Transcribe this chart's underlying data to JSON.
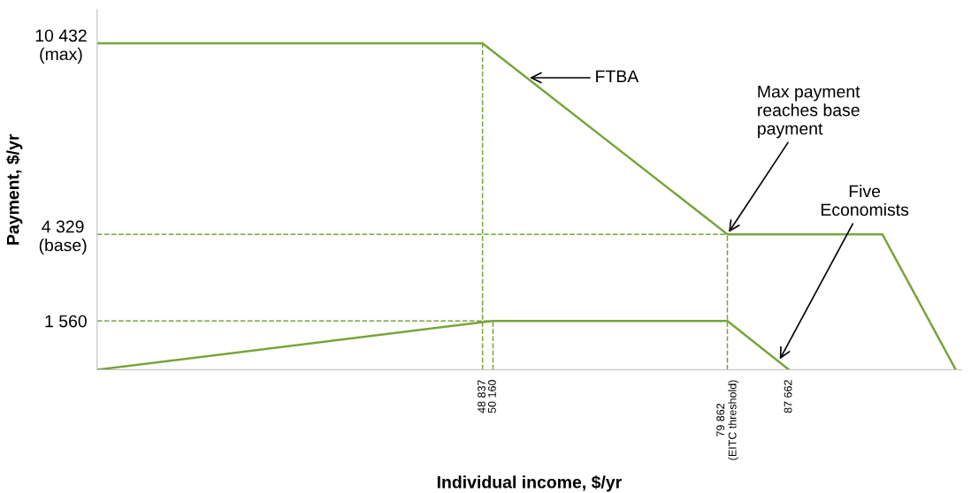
{
  "chart_data": {
    "type": "line",
    "xlabel": "Individual income, $/yr",
    "ylabel": "Payment, $/yr",
    "xlim": [
      0,
      109500
    ],
    "ylim": [
      0,
      11500
    ],
    "xticks": [
      {
        "value": 48837,
        "label": "48 837"
      },
      {
        "value": 50160,
        "label": "50 160"
      },
      {
        "value": 79862,
        "label": "79 862\n(EITC threshold)"
      },
      {
        "value": 87662,
        "label": "87 662"
      }
    ],
    "yticks": [
      {
        "value": 1560,
        "label": "1 560"
      },
      {
        "value": 4329,
        "label": "4 329\n(base)"
      },
      {
        "value": 10432,
        "label": "10 432\n(max)"
      }
    ],
    "line_style": "solid",
    "series": [
      {
        "color": "#77a53a",
        "x": [
          0,
          48837,
          79862,
          99500,
          108800
        ],
        "values": [
          10432,
          10432,
          4329,
          4329,
          0
        ]
      },
      {
        "color": "#77a53a",
        "x": [
          0,
          50160,
          79862,
          87662
        ],
        "values": [
          0,
          1560,
          1560,
          0
        ]
      }
    ],
    "ref_lines": [
      {
        "axis": "y",
        "value": 4329,
        "color": "#77a53a",
        "line_style": "dashed"
      },
      {
        "axis": "y",
        "value": 1560,
        "color": "#77a53a",
        "line_style": "dashed"
      },
      {
        "axis": "x",
        "value": 48837,
        "color": "#77a53a",
        "line_style": "dashed"
      },
      {
        "axis": "x",
        "value": 50160,
        "color": "#77a53a",
        "line_style": "dashed"
      },
      {
        "axis": "x",
        "value": 79862,
        "color": "#77a53a",
        "line_style": "dashed"
      }
    ],
    "annotations": [
      {
        "text": "FTBA",
        "x": 54500,
        "y": 9330
      },
      {
        "text": "Max payment\nreaches base\npayment",
        "x": 79862,
        "y": 4329
      },
      {
        "text": "Five\nEconomists",
        "x": 86350,
        "y": 265
      }
    ]
  }
}
